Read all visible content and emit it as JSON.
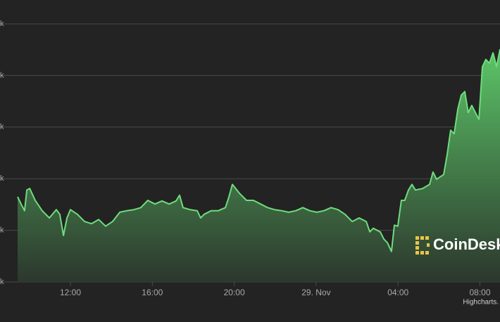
{
  "chart_data": {
    "type": "area",
    "x": [
      9.42,
      9.59,
      9.76,
      9.87,
      10.01,
      10.28,
      10.62,
      10.97,
      11.31,
      11.48,
      11.66,
      11.83,
      12,
      12.34,
      12.69,
      13.03,
      13.38,
      13.72,
      14.06,
      14.41,
      14.75,
      15.1,
      15.44,
      15.78,
      16.13,
      16.47,
      16.82,
      17.16,
      17.33,
      17.5,
      17.85,
      18.19,
      18.36,
      18.53,
      18.88,
      19.22,
      19.57,
      19.74,
      19.91,
      20.25,
      20.6,
      20.94,
      21.29,
      21.63,
      21.97,
      22.32,
      22.66,
      23.01,
      23.35,
      23.69,
      24.04,
      24.38,
      24.73,
      25.07,
      25.41,
      25.76,
      26.1,
      26.45,
      26.62,
      26.79,
      27.13,
      27.31,
      27.48,
      27.68,
      27.82,
      27.99,
      28.16,
      28.33,
      28.51,
      28.68,
      28.85,
      29.2,
      29.54,
      29.71,
      29.88,
      30.23,
      30.4,
      30.57,
      30.74,
      30.92,
      31.09,
      31.26,
      31.43,
      31.6,
      31.78,
      31.95,
      32.12,
      32.29,
      32.46,
      32.64,
      32.81,
      32.98
    ],
    "series": [
      {
        "color": "#6fdc7c",
        "values": [
          1.65,
          1.51,
          1.38,
          1.78,
          1.81,
          1.58,
          1.38,
          1.24,
          1.4,
          1.31,
          0.9,
          1.24,
          1.4,
          1.31,
          1.17,
          1.13,
          1.21,
          1.08,
          1.17,
          1.35,
          1.38,
          1.4,
          1.44,
          1.58,
          1.51,
          1.57,
          1.51,
          1.57,
          1.68,
          1.44,
          1.4,
          1.38,
          1.24,
          1.31,
          1.38,
          1.38,
          1.44,
          1.65,
          1.89,
          1.72,
          1.58,
          1.58,
          1.51,
          1.44,
          1.4,
          1.38,
          1.35,
          1.38,
          1.44,
          1.38,
          1.35,
          1.38,
          1.44,
          1.4,
          1.31,
          1.17,
          1.24,
          1.17,
          0.97,
          1.04,
          0.97,
          0.83,
          0.76,
          0.59,
          1.1,
          1.08,
          1.58,
          1.58,
          1.78,
          1.89,
          1.78,
          1.81,
          1.89,
          2.13,
          1.99,
          2.08,
          2.47,
          2.94,
          2.87,
          3.35,
          3.62,
          3.69,
          3.28,
          3.42,
          3.28,
          3.15,
          4.17,
          4.31,
          4.24,
          4.44,
          4.17,
          4.51
        ]
      }
    ],
    "xlim": [
      9.42,
      32.98
    ],
    "xticks": [
      {
        "value": 12,
        "label": "12:00"
      },
      {
        "value": 16,
        "label": "16:00"
      },
      {
        "value": 20,
        "label": "20:00"
      },
      {
        "value": 24,
        "label": "29. Nov"
      },
      {
        "value": 28,
        "label": "04:00"
      },
      {
        "value": 32,
        "label": "08:00"
      }
    ],
    "ylim": [
      0,
      5
    ],
    "yticks": [
      {
        "value": 0,
        "label": "k"
      },
      {
        "value": 1,
        "label": "k"
      },
      {
        "value": 2,
        "label": "k"
      },
      {
        "value": 3,
        "label": "k"
      },
      {
        "value": 4,
        "label": "k"
      },
      {
        "value": 5,
        "label": "k"
      }
    ],
    "grid": true,
    "watermark": "CoinDesk",
    "credit": "Highcharts."
  }
}
